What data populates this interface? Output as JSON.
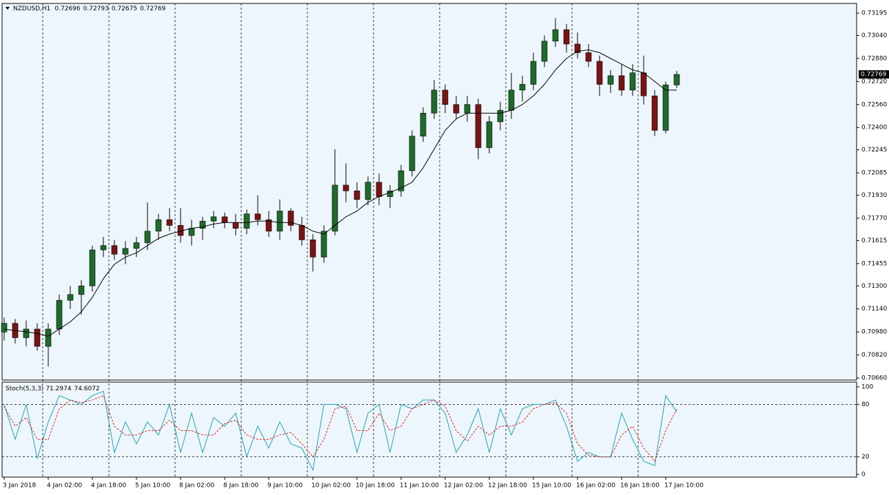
{
  "chart_data": [
    {
      "type": "candlestick",
      "title": "NZDUSD,H1",
      "categories": [
        "3 Jan 2018",
        null,
        null,
        null,
        "4 Jan 02:00",
        null,
        null,
        null,
        "4 Jan 18:00",
        null,
        null,
        null,
        "5 Jan 10:00",
        null,
        null,
        null,
        "8 Jan 02:00",
        null,
        null,
        null,
        "8 Jan 18:00",
        null,
        null,
        null,
        "9 Jan 10:00",
        null,
        null,
        null,
        "10 Jan 02:00",
        null,
        null,
        null,
        "10 Jan 18:00",
        null,
        null,
        null,
        "11 Jan 10:00",
        null,
        null,
        null,
        "12 Jan 02:00",
        null,
        null,
        null,
        "12 Jan 18:00",
        null,
        null,
        null,
        "15 Jan 10:00",
        null,
        null,
        null,
        "16 Jan 02:00",
        null,
        null,
        null,
        "16 Jan 18:00",
        null,
        null,
        null,
        "17 Jan 10:00",
        null
      ],
      "open": [
        0.7098,
        0.7104,
        0.7094,
        0.71,
        0.7088,
        0.71,
        0.712,
        0.7124,
        0.713,
        0.7155,
        0.7158,
        0.7152,
        0.7156,
        0.716,
        0.7168,
        0.7176,
        0.7172,
        0.7165,
        0.717,
        0.7175,
        0.7178,
        0.7174,
        0.717,
        0.718,
        0.7176,
        0.7168,
        0.7182,
        0.7172,
        0.7162,
        0.715,
        0.7168,
        0.72,
        0.7196,
        0.719,
        0.7202,
        0.7192,
        0.7196,
        0.721,
        0.7234,
        0.725,
        0.7266,
        0.7256,
        0.725,
        0.7256,
        0.7226,
        0.7244,
        0.7252,
        0.7266,
        0.727,
        0.7286,
        0.73,
        0.7308,
        0.7298,
        0.7292,
        0.7286,
        0.727,
        0.7276,
        0.7266,
        0.7278,
        0.7262,
        0.7238,
        0.72696
      ],
      "high": [
        0.7108,
        0.7107,
        0.7106,
        0.7104,
        0.7104,
        0.7124,
        0.713,
        0.7134,
        0.7158,
        0.7164,
        0.7162,
        0.7161,
        0.7164,
        0.7188,
        0.718,
        0.7184,
        0.7184,
        0.7176,
        0.7178,
        0.7182,
        0.7181,
        0.718,
        0.7183,
        0.7193,
        0.7182,
        0.719,
        0.7184,
        0.7178,
        0.7166,
        0.7172,
        0.7225,
        0.7215,
        0.7202,
        0.7206,
        0.7208,
        0.72,
        0.7214,
        0.7238,
        0.7254,
        0.7273,
        0.727,
        0.7262,
        0.7262,
        0.726,
        0.7248,
        0.7258,
        0.7278,
        0.7276,
        0.7292,
        0.7304,
        0.7316,
        0.7312,
        0.7306,
        0.7298,
        0.729,
        0.728,
        0.7284,
        0.7284,
        0.729,
        0.7266,
        0.7272,
        0.72793
      ],
      "low": [
        0.7092,
        0.709,
        0.7088,
        0.7085,
        0.7074,
        0.7096,
        0.7114,
        0.711,
        0.7126,
        0.715,
        0.7148,
        0.7145,
        0.715,
        0.7155,
        0.7162,
        0.7168,
        0.716,
        0.7158,
        0.7162,
        0.717,
        0.717,
        0.7165,
        0.7166,
        0.7172,
        0.7164,
        0.7162,
        0.7168,
        0.7158,
        0.714,
        0.7146,
        0.7165,
        0.7188,
        0.7184,
        0.7186,
        0.7186,
        0.7184,
        0.7192,
        0.7206,
        0.723,
        0.7246,
        0.725,
        0.7246,
        0.7244,
        0.7218,
        0.7222,
        0.7238,
        0.7246,
        0.7258,
        0.7266,
        0.7282,
        0.7296,
        0.7292,
        0.7288,
        0.7282,
        0.7262,
        0.7264,
        0.7262,
        0.7262,
        0.7256,
        0.7234,
        0.7236,
        0.72675
      ],
      "close": [
        0.7104,
        0.7094,
        0.71,
        0.7088,
        0.71,
        0.712,
        0.7124,
        0.713,
        0.7155,
        0.7158,
        0.7152,
        0.7156,
        0.716,
        0.7168,
        0.7176,
        0.7172,
        0.7165,
        0.717,
        0.7175,
        0.7178,
        0.7174,
        0.717,
        0.718,
        0.7176,
        0.7168,
        0.7182,
        0.7172,
        0.7162,
        0.715,
        0.7168,
        0.72,
        0.7196,
        0.719,
        0.7202,
        0.7192,
        0.7196,
        0.721,
        0.7234,
        0.725,
        0.7266,
        0.7256,
        0.725,
        0.7256,
        0.7226,
        0.7244,
        0.7252,
        0.7266,
        0.727,
        0.7286,
        0.73,
        0.7308,
        0.7298,
        0.7292,
        0.7286,
        0.727,
        0.7276,
        0.7266,
        0.7278,
        0.7262,
        0.7238,
        0.72696,
        0.72769
      ],
      "up_color": "#1f6b2a",
      "down_color": "#7a1414",
      "ma_values": [
        0.71,
        0.7099,
        0.7098,
        0.7097,
        0.7095,
        0.71,
        0.7105,
        0.7112,
        0.7122,
        0.7135,
        0.7145,
        0.715,
        0.7153,
        0.7158,
        0.7163,
        0.7166,
        0.7168,
        0.717,
        0.7171,
        0.7173,
        0.7174,
        0.7174,
        0.7174,
        0.7175,
        0.7175,
        0.7174,
        0.7174,
        0.7172,
        0.7168,
        0.7166,
        0.7172,
        0.7178,
        0.7182,
        0.7188,
        0.7192,
        0.7195,
        0.7198,
        0.7202,
        0.7212,
        0.7225,
        0.7238,
        0.7246,
        0.725,
        0.725,
        0.725,
        0.725,
        0.7252,
        0.7256,
        0.7262,
        0.727,
        0.728,
        0.7288,
        0.7293,
        0.7294,
        0.7292,
        0.7288,
        0.7284,
        0.728,
        0.7278,
        0.7272,
        0.7266,
        0.7266
      ],
      "ma_color": "#000000",
      "ylim": [
        0.70646,
        0.73262
      ],
      "yticks": [
        {
          "value": 0.73195,
          "label": "0.73195"
        },
        {
          "value": 0.7304,
          "label": "0.73040"
        },
        {
          "value": 0.7288,
          "label": "0.72880"
        },
        {
          "value": 0.7272,
          "label": "0.72720"
        },
        {
          "value": 0.7256,
          "label": "0.72560"
        },
        {
          "value": 0.724,
          "label": "0.72400"
        },
        {
          "value": 0.72245,
          "label": "0.72245"
        },
        {
          "value": 0.72085,
          "label": "0.72085"
        },
        {
          "value": 0.7193,
          "label": "0.71930"
        },
        {
          "value": 0.7177,
          "label": "0.71770"
        },
        {
          "value": 0.71615,
          "label": "0.71615"
        },
        {
          "value": 0.71455,
          "label": "0.71455"
        },
        {
          "value": 0.713,
          "label": "0.71300"
        },
        {
          "value": 0.7114,
          "label": "0.71140"
        },
        {
          "value": 0.7098,
          "label": "0.70980"
        },
        {
          "value": 0.7082,
          "label": "0.70820"
        },
        {
          "value": 0.7066,
          "label": "0.70660"
        }
      ]
    },
    {
      "type": "line",
      "title": "Stoch(5,3,3)",
      "series": [
        {
          "color": "#1aa3b8",
          "values": [
            80,
            40,
            80,
            18,
            60,
            90,
            85,
            80,
            90,
            95,
            25,
            60,
            35,
            60,
            45,
            80,
            25,
            70,
            25,
            65,
            55,
            70,
            20,
            55,
            30,
            60,
            35,
            30,
            5,
            80,
            80,
            75,
            25,
            70,
            80,
            25,
            80,
            75,
            85,
            85,
            70,
            25,
            45,
            75,
            25,
            75,
            45,
            75,
            80,
            80,
            85,
            55,
            15,
            25,
            20,
            20,
            70,
            40,
            15,
            10,
            90,
            71.2974
          ]
        },
        {
          "color": "#e0201c",
          "dashed": true,
          "values": [
            78,
            55,
            65,
            40,
            40,
            75,
            85,
            82,
            85,
            90,
            55,
            45,
            45,
            50,
            50,
            62,
            50,
            50,
            45,
            45,
            58,
            62,
            45,
            40,
            40,
            45,
            48,
            35,
            20,
            40,
            75,
            78,
            50,
            50,
            70,
            50,
            55,
            75,
            80,
            85,
            78,
            50,
            38,
            55,
            45,
            55,
            55,
            60,
            75,
            80,
            82,
            70,
            35,
            22,
            20,
            20,
            45,
            55,
            30,
            15,
            50,
            74.6072
          ]
        }
      ],
      "levels": [
        80,
        20
      ],
      "ylim": [
        -3.1,
        105.5
      ],
      "yticks": [
        100,
        80,
        20,
        0
      ]
    }
  ]
}
